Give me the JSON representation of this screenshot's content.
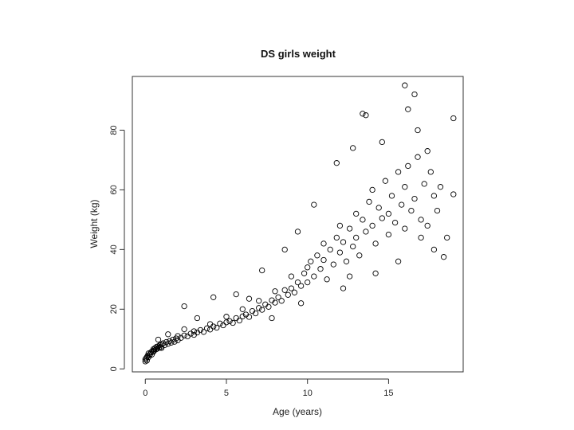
{
  "chart_data": {
    "type": "scatter",
    "title": "DS girls weight",
    "xlabel": "Age (years)",
    "ylabel": "Weight (kg)",
    "xlim": [
      -0.8,
      19.6
    ],
    "ylim": [
      -1,
      98
    ],
    "x_ticks": [
      "0",
      "5",
      "10",
      "15"
    ],
    "y_ticks": [
      "0",
      "20",
      "40",
      "60",
      "80"
    ],
    "grid": false,
    "legend": "none",
    "marker": "open-circle",
    "series": [
      {
        "points": [
          [
            0.0,
            3.2
          ],
          [
            0.0,
            2.5
          ],
          [
            0.05,
            3.6
          ],
          [
            0.1,
            4.0
          ],
          [
            0.1,
            2.8
          ],
          [
            0.15,
            4.4
          ],
          [
            0.2,
            3.9
          ],
          [
            0.2,
            5.2
          ],
          [
            0.25,
            4.6
          ],
          [
            0.3,
            5.0
          ],
          [
            0.35,
            5.6
          ],
          [
            0.4,
            4.8
          ],
          [
            0.45,
            6.0
          ],
          [
            0.5,
            5.7
          ],
          [
            0.5,
            6.6
          ],
          [
            0.55,
            6.2
          ],
          [
            0.6,
            7.0
          ],
          [
            0.65,
            6.5
          ],
          [
            0.7,
            7.4
          ],
          [
            0.75,
            6.8
          ],
          [
            0.8,
            7.6
          ],
          [
            0.85,
            7.1
          ],
          [
            0.9,
            8.0
          ],
          [
            0.95,
            7.3
          ],
          [
            1.0,
            8.2
          ],
          [
            1.0,
            7.0
          ],
          [
            1.1,
            8.6
          ],
          [
            1.2,
            8.0
          ],
          [
            1.3,
            9.0
          ],
          [
            1.4,
            8.4
          ],
          [
            1.5,
            9.3
          ],
          [
            1.6,
            8.8
          ],
          [
            1.7,
            9.8
          ],
          [
            1.8,
            9.1
          ],
          [
            1.9,
            10.2
          ],
          [
            2.0,
            9.6
          ],
          [
            2.0,
            11.0
          ],
          [
            2.2,
            10.4
          ],
          [
            2.4,
            11.2
          ],
          [
            2.4,
            13.3
          ],
          [
            2.6,
            10.9
          ],
          [
            2.8,
            11.8
          ],
          [
            3.0,
            11.4
          ],
          [
            3.0,
            12.6
          ],
          [
            3.2,
            12.2
          ],
          [
            3.4,
            13.0
          ],
          [
            3.6,
            12.4
          ],
          [
            3.8,
            13.6
          ],
          [
            4.0,
            13.2
          ],
          [
            4.0,
            15.0
          ],
          [
            4.2,
            14.2
          ],
          [
            4.4,
            13.8
          ],
          [
            4.6,
            15.2
          ],
          [
            4.8,
            14.6
          ],
          [
            5.0,
            15.6
          ],
          [
            5.0,
            17.5
          ],
          [
            5.2,
            16.0
          ],
          [
            5.4,
            15.4
          ],
          [
            5.6,
            17.0
          ],
          [
            5.8,
            16.2
          ],
          [
            6.0,
            17.6
          ],
          [
            6.0,
            20.0
          ],
          [
            6.2,
            18.2
          ],
          [
            6.4,
            17.4
          ],
          [
            6.6,
            19.4
          ],
          [
            6.8,
            18.6
          ],
          [
            7.0,
            20.4
          ],
          [
            7.0,
            22.8
          ],
          [
            7.2,
            19.8
          ],
          [
            7.4,
            21.6
          ],
          [
            7.6,
            20.8
          ],
          [
            7.8,
            23.0
          ],
          [
            8.0,
            22.2
          ],
          [
            8.0,
            26.0
          ],
          [
            8.2,
            24.0
          ],
          [
            8.4,
            22.8
          ],
          [
            8.6,
            26.4
          ],
          [
            8.8,
            24.8
          ],
          [
            9.0,
            27.0
          ],
          [
            9.0,
            31.0
          ],
          [
            9.2,
            25.6
          ],
          [
            9.4,
            29.0
          ],
          [
            9.6,
            27.8
          ],
          [
            9.8,
            32.0
          ],
          [
            10.0,
            29.0
          ],
          [
            10.0,
            34.0
          ],
          [
            10.2,
            36.0
          ],
          [
            10.4,
            31.0
          ],
          [
            10.6,
            38.0
          ],
          [
            10.8,
            33.5
          ],
          [
            11.0,
            36.5
          ],
          [
            11.0,
            42.0
          ],
          [
            11.2,
            30.0
          ],
          [
            11.4,
            40.0
          ],
          [
            11.6,
            35.0
          ],
          [
            11.8,
            44.0
          ],
          [
            12.0,
            39.0
          ],
          [
            12.0,
            48.0
          ],
          [
            12.2,
            42.5
          ],
          [
            12.4,
            36.0
          ],
          [
            12.6,
            47.0
          ],
          [
            12.8,
            41.0
          ],
          [
            13.0,
            52.0
          ],
          [
            13.0,
            44.0
          ],
          [
            13.2,
            38.0
          ],
          [
            13.4,
            50.0
          ],
          [
            13.6,
            46.0
          ],
          [
            13.8,
            56.0
          ],
          [
            14.0,
            48.0
          ],
          [
            14.0,
            60.0
          ],
          [
            14.2,
            42.0
          ],
          [
            14.4,
            54.0
          ],
          [
            14.6,
            50.5
          ],
          [
            14.8,
            63.0
          ],
          [
            15.0,
            52.0
          ],
          [
            15.0,
            45.0
          ],
          [
            15.2,
            58.0
          ],
          [
            15.4,
            49.0
          ],
          [
            15.6,
            66.0
          ],
          [
            15.8,
            55.0
          ],
          [
            16.0,
            61.0
          ],
          [
            16.0,
            47.0
          ],
          [
            16.2,
            68.0
          ],
          [
            16.4,
            53.0
          ],
          [
            16.6,
            57.0
          ],
          [
            16.8,
            71.0
          ],
          [
            17.0,
            50.0
          ],
          [
            17.2,
            62.0
          ],
          [
            17.4,
            48.0
          ],
          [
            17.6,
            66.0
          ],
          [
            17.8,
            58.0
          ],
          [
            18.0,
            53.0
          ],
          [
            18.2,
            61.0
          ],
          [
            18.4,
            37.5
          ],
          [
            18.6,
            44.0
          ],
          [
            19.0,
            58.5
          ],
          [
            16.0,
            95.0
          ],
          [
            16.6,
            92.0
          ],
          [
            16.2,
            87.0
          ],
          [
            19.0,
            84.0
          ],
          [
            13.4,
            85.5
          ],
          [
            13.6,
            85.0
          ],
          [
            12.8,
            74.0
          ],
          [
            14.6,
            76.0
          ],
          [
            16.8,
            80.0
          ],
          [
            17.4,
            73.0
          ],
          [
            11.8,
            69.0
          ],
          [
            17.0,
            44.0
          ],
          [
            12.6,
            31.0
          ],
          [
            8.6,
            40.0
          ],
          [
            7.2,
            33.0
          ],
          [
            5.6,
            25.0
          ],
          [
            4.2,
            24.0
          ],
          [
            2.4,
            21.0
          ],
          [
            10.4,
            55.0
          ],
          [
            9.4,
            46.0
          ],
          [
            6.4,
            23.5
          ],
          [
            3.2,
            17.0
          ],
          [
            1.4,
            11.6
          ],
          [
            0.8,
            9.8
          ],
          [
            7.8,
            17.0
          ],
          [
            9.6,
            22.0
          ],
          [
            12.2,
            27.0
          ],
          [
            14.2,
            32.0
          ],
          [
            15.6,
            36.0
          ],
          [
            17.8,
            40.0
          ]
        ]
      }
    ]
  }
}
